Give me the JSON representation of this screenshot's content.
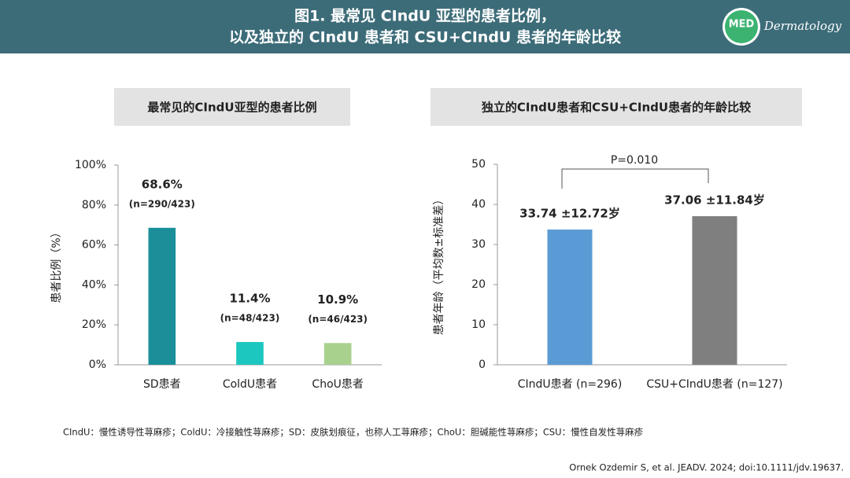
{
  "header": {
    "title_lines": [
      "图1. 最常见 CIndU 亚型的患者比例，",
      "以及独立的 CIndU 患者和 CSU+CIndU 患者的年龄比较"
    ],
    "logo_text": "MED",
    "logo_subtitle": "Dermatology"
  },
  "chart_data": [
    {
      "type": "bar",
      "title": "最常见的CIndU亚型的患者比例",
      "y_label": "患者比例（%）",
      "categories": [
        "SD患者",
        "ColdU患者",
        "ChoU患者"
      ],
      "values": [
        68.6,
        11.4,
        10.9
      ],
      "value_labels": [
        "68.6%",
        "11.4%",
        "10.9%"
      ],
      "sample_labels": [
        "(n=290/423)",
        "(n=48/423)",
        "(n=46/423)"
      ],
      "colors": [
        "#1a8f9a",
        "#1cc7bf",
        "#a9d18e"
      ],
      "ylim": [
        0,
        100
      ],
      "yticks": [
        {
          "value": 0,
          "label": "0%"
        },
        {
          "value": 20,
          "label": "20%"
        },
        {
          "value": 40,
          "label": "40%"
        },
        {
          "value": 60,
          "label": "60%"
        },
        {
          "value": 80,
          "label": "80%"
        },
        {
          "value": 100,
          "label": "100%"
        }
      ]
    },
    {
      "type": "bar",
      "title": "独立的CIndU患者和CSU+CIndU患者的年龄比较",
      "y_label": "患者年龄（平均数±标准差）",
      "categories": [
        "CIndU患者 (n=296)",
        "CSU+CIndU患者 (n=127)"
      ],
      "values": [
        33.74,
        37.06
      ],
      "value_labels": [
        "33.74 ±12.72岁",
        "37.06 ±11.84岁"
      ],
      "colors": [
        "#5b9bd5",
        "#7f7f7f"
      ],
      "annotation": "P=0.010",
      "ylim": [
        0,
        50
      ],
      "yticks": [
        0,
        10,
        20,
        30,
        40,
        50
      ]
    }
  ],
  "footnote": "CIndU：慢性诱导性荨麻疹；ColdU：冷接触性荨麻疹；SD：皮肤划痕征，也称人工荨麻疹；ChoU：胆碱能性荨麻疹；CSU：慢性自发性荨麻疹",
  "citation": "Ornek Ozdemir S, et al. JEADV. 2024; doi:10.1111/jdv.19637."
}
